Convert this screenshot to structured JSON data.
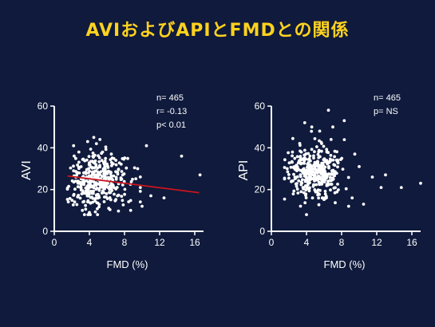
{
  "title": "AVIおよびAPIとFMDとの関係",
  "colors": {
    "background": "#0f1a3c",
    "title": "#ffd21e",
    "points": "#ffffff",
    "axis": "#ffffff",
    "regression": "#c8141e"
  },
  "chart_data": [
    {
      "type": "scatter",
      "id": "avi",
      "xlabel": "FMD (%)",
      "ylabel": "AVI",
      "xlim": [
        0,
        17
      ],
      "ylim": [
        0,
        60
      ],
      "xticks": [
        "0",
        "4",
        "8",
        "12",
        "16"
      ],
      "yticks": [
        "0",
        "20",
        "40",
        "60"
      ],
      "stats": [
        "n= 465",
        "r= -0.13",
        "p< 0.01"
      ],
      "regression": {
        "x": [
          1.5,
          16.5
        ],
        "y": [
          26.5,
          18.5
        ]
      },
      "points": [
        [
          4.5,
          45
        ],
        [
          5.2,
          44
        ],
        [
          4.8,
          42
        ],
        [
          3.8,
          43
        ],
        [
          2.2,
          41
        ],
        [
          2.8,
          38
        ],
        [
          5.5,
          38
        ],
        [
          6.5,
          37
        ],
        [
          10.5,
          41
        ],
        [
          16.6,
          27
        ],
        [
          14.5,
          36
        ],
        [
          12.5,
          16
        ],
        [
          10,
          12
        ],
        [
          8.7,
          10
        ],
        [
          9.8,
          21
        ],
        [
          11,
          17
        ],
        [
          9.5,
          30
        ],
        [
          3.2,
          10
        ],
        [
          4,
          9
        ],
        [
          6.2,
          11
        ]
      ],
      "cloud": {
        "n": 380,
        "seed": 7,
        "xmean": 5,
        "xsd": 1.6,
        "ymean": 24,
        "ysd": 6.5,
        "xmin": 1.5,
        "xmax": 9.8,
        "ymin": 8,
        "ymax": 46
      }
    },
    {
      "type": "scatter",
      "id": "api",
      "xlabel": "FMD (%)",
      "ylabel": "API",
      "xlim": [
        0,
        17
      ],
      "ylim": [
        0,
        60
      ],
      "xticks": [
        "0",
        "4",
        "8",
        "12",
        "16"
      ],
      "yticks": [
        "0",
        "20",
        "40",
        "60"
      ],
      "stats": [
        "n= 465",
        "p= NS"
      ],
      "points": [
        [
          6.5,
          58
        ],
        [
          8.3,
          53
        ],
        [
          7,
          50
        ],
        [
          3.8,
          52
        ],
        [
          4.6,
          50
        ],
        [
          5.5,
          48
        ],
        [
          11.5,
          26
        ],
        [
          12.5,
          21
        ],
        [
          13,
          27
        ],
        [
          14.8,
          21
        ],
        [
          17,
          23
        ],
        [
          10.5,
          13
        ],
        [
          8.8,
          12
        ],
        [
          4,
          8
        ],
        [
          9.5,
          37
        ],
        [
          10,
          31
        ],
        [
          9.2,
          16
        ],
        [
          1.8,
          30
        ],
        [
          2.4,
          38
        ],
        [
          6.8,
          44
        ]
      ],
      "cloud": {
        "n": 380,
        "seed": 13,
        "xmean": 5,
        "xsd": 1.5,
        "ymean": 28,
        "ysd": 6,
        "xmin": 1.5,
        "xmax": 10,
        "ymin": 10,
        "ymax": 50
      }
    }
  ]
}
